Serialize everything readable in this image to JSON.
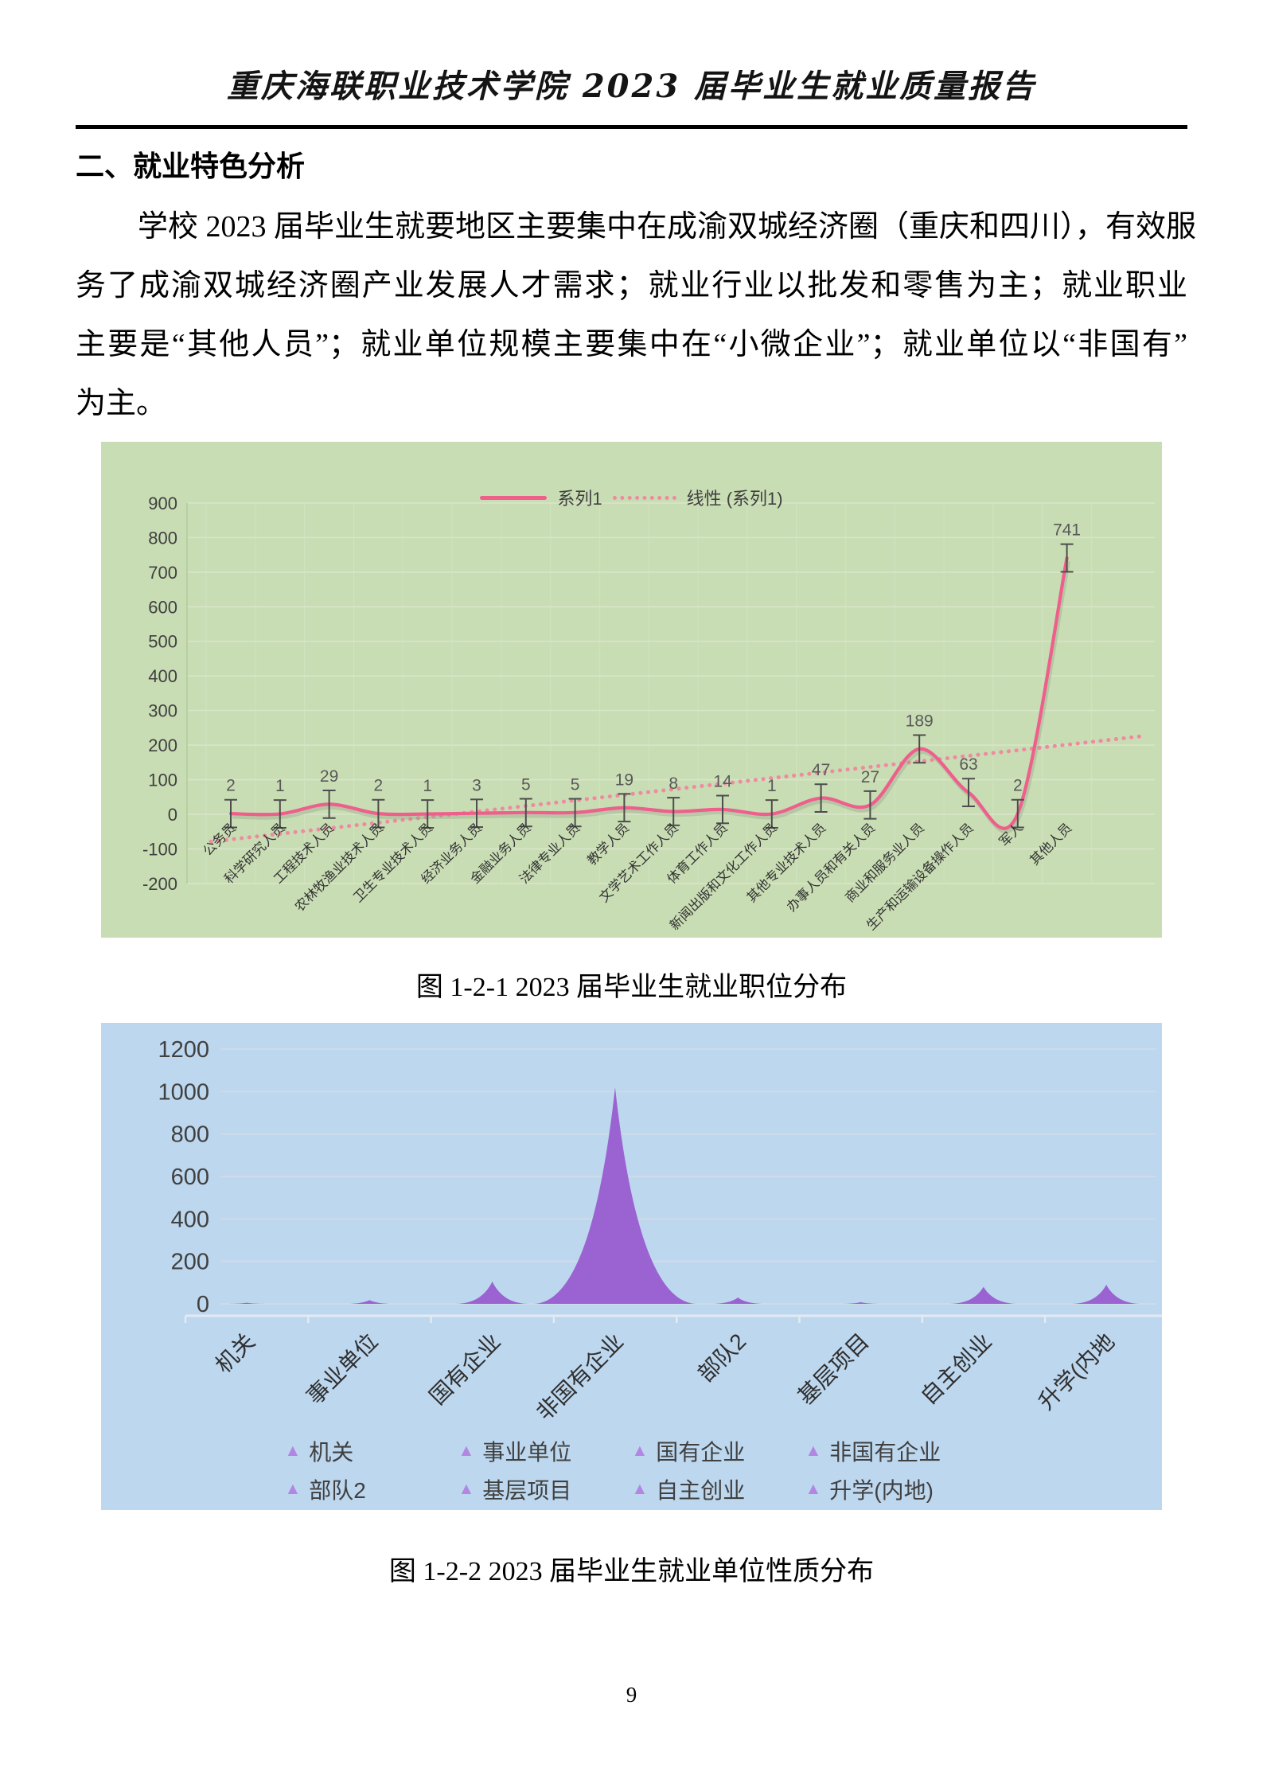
{
  "page": {
    "header_title": "重庆海联职业技术学院 2023 届毕业生就业质量报告",
    "section_heading": "二、就业特色分析",
    "paragraph_lines": [
      "学校 2023 届毕业生就要地区主要集中在成渝双城经济圈（重庆和四川），有效服",
      "务了成渝双城经济圈产业发展人才需求；就业行业以批发和零售为主；就业职业",
      "主要是“其他人员”；就业单位规模主要集中在“小微企业”；就业单位以“非国有”",
      "为主。"
    ],
    "caption1": "图 1-2-1  2023 届毕业生就业职位分布",
    "caption2": "图 1-2-2  2023 届毕业生就业单位性质分布",
    "page_number": "9"
  },
  "chart_data": [
    {
      "type": "line",
      "legend": [
        "系列1",
        "线性 (系列1)"
      ],
      "legend_position": "top",
      "categories": [
        "公务员",
        "科学研究人员",
        "工程技术人员",
        "农林牧渔业技术人员",
        "卫生专业技术人员",
        "经济业务人员",
        "金融业务人员",
        "法律专业人员",
        "教学人员",
        "文学艺术工作人员",
        "体育工作人员",
        "新闻出版和文化工作人员",
        "其他专业技术人员",
        "办事人员和有关人员",
        "商业和服务业人员",
        "生产和运输设备操作人员",
        "军人",
        "其他人员"
      ],
      "series": [
        {
          "name": "系列1",
          "values": [
            2,
            1,
            29,
            2,
            1,
            3,
            5,
            5,
            19,
            8,
            14,
            1,
            47,
            27,
            189,
            63,
            2,
            741
          ]
        }
      ],
      "trendline": {
        "name": "线性 (系列1)",
        "slope": 16.11,
        "intercept": -72.58
      },
      "ylim": [
        -200,
        900
      ],
      "ytick_step": 100,
      "error_bar_halfwidth": 40,
      "grid": true,
      "colors": {
        "background": "#c9ddb4",
        "series_line": "#ee5f8c",
        "trendline": "#ef8ba0",
        "error_bar": "#4d4d4d",
        "grid": "#d7e5c9",
        "axis": "#b2cc9c",
        "tick_text": "#404040",
        "data_label": "#595959",
        "category_text": "#333333"
      }
    },
    {
      "type": "area",
      "categories": [
        "机关",
        "事业单位",
        "国有企业",
        "非国有企业",
        "部队2",
        "基层项目",
        "自主创业",
        "升学(内地"
      ],
      "legend": [
        "机关",
        "事业单位",
        "国有企业",
        "非国有企业",
        "部队2",
        "基层项目",
        "自主创业",
        "升学(内地)"
      ],
      "legend_position": "bottom",
      "values": [
        5,
        18,
        105,
        1020,
        30,
        8,
        80,
        90
      ],
      "ylim": [
        0,
        1200
      ],
      "ytick_step": 200,
      "grid": true,
      "colors": {
        "background": "#bdd7ee",
        "fill": "#9b62d1",
        "legend_marker": "#b286e2",
        "grid": "#cfdbe8",
        "axis": "#e2eaf3",
        "tick_text": "#404040",
        "category_text": "#2f2f2f"
      }
    }
  ]
}
